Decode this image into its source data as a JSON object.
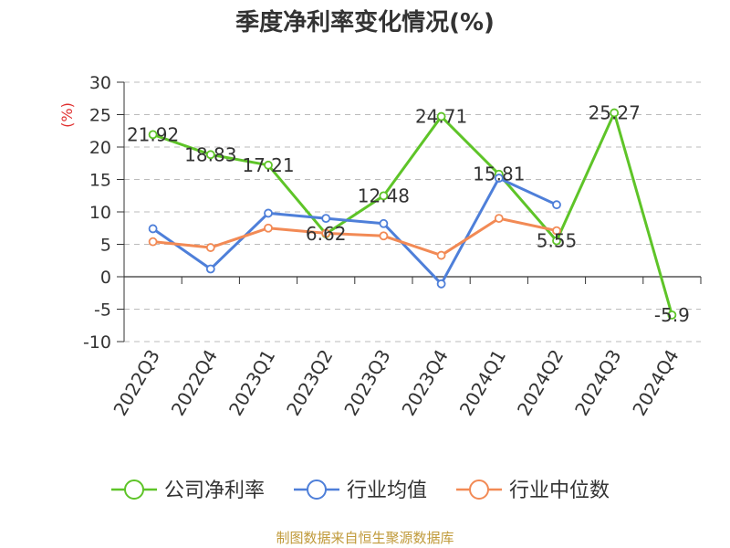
{
  "title": "季度净利率变化情况(%)",
  "source": "制图数据来自恒生聚源数据库",
  "colors": {
    "company": "#5ec428",
    "industry_avg": "#4e7fd9",
    "industry_median": "#f28a55",
    "ylabel": "#e03030",
    "grid": "#bbbbbb",
    "text": "#333333"
  },
  "chart_data": {
    "type": "line",
    "title": "季度净利率变化情况(%)",
    "ylabel": "(%)",
    "xlabel": "",
    "categories": [
      "2022Q3",
      "2022Q4",
      "2023Q1",
      "2023Q2",
      "2023Q3",
      "2023Q4",
      "2024Q1",
      "2024Q2",
      "2024Q3",
      "2024Q4"
    ],
    "ylim": [
      -10,
      30
    ],
    "yticks": [
      30,
      25,
      20,
      15,
      10,
      5,
      0,
      -5,
      -10
    ],
    "grid": true,
    "legend_position": "bottom",
    "series": [
      {
        "name": "公司净利率",
        "color_key": "company",
        "values": [
          21.92,
          18.83,
          17.21,
          6.62,
          12.48,
          24.71,
          15.81,
          5.55,
          25.27,
          -5.9
        ],
        "labels": [
          "21.92",
          "18.83",
          "17.21",
          "6.62",
          "12.48",
          "24.71",
          "15.81",
          "5.55",
          "25.27",
          "-5.9"
        ]
      },
      {
        "name": "行业均值",
        "color_key": "industry_avg",
        "values": [
          7.4,
          1.2,
          9.8,
          9.0,
          8.2,
          -1.1,
          15.2,
          11.1,
          null,
          null
        ]
      },
      {
        "name": "行业中位数",
        "color_key": "industry_median",
        "values": [
          5.4,
          4.5,
          7.5,
          6.7,
          6.3,
          3.3,
          9.0,
          7.1,
          null,
          null
        ]
      }
    ]
  }
}
